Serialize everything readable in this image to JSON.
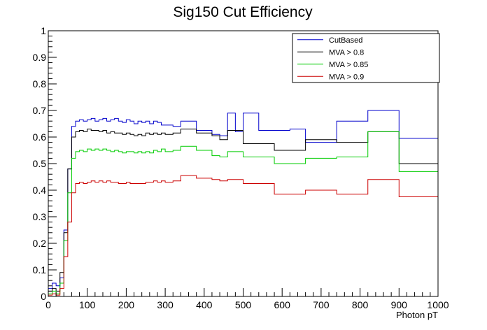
{
  "chart_data": {
    "type": "line",
    "title": "Sig150 Cut Efficiency",
    "xlabel": "Photon pT",
    "ylabel": "",
    "xlim": [
      0,
      1000
    ],
    "ylim": [
      0,
      1
    ],
    "x_tick_labels": [
      "0",
      "100",
      "200",
      "300",
      "400",
      "500",
      "600",
      "700",
      "800",
      "900",
      "1000"
    ],
    "y_tick_labels": [
      "0",
      "0.1",
      "0.2",
      "0.3",
      "0.4",
      "0.5",
      "0.6",
      "0.7",
      "0.8",
      "0.9",
      "1"
    ],
    "grid": false,
    "legend_position": "top-right",
    "bin_edges": [
      0,
      10,
      20,
      30,
      40,
      50,
      60,
      70,
      80,
      90,
      100,
      110,
      120,
      130,
      140,
      150,
      160,
      170,
      180,
      190,
      200,
      210,
      220,
      230,
      240,
      250,
      260,
      270,
      280,
      290,
      300,
      320,
      340,
      360,
      380,
      400,
      420,
      440,
      460,
      480,
      500,
      540,
      580,
      620,
      660,
      700,
      740,
      780,
      820,
      860,
      900,
      1000
    ],
    "series": [
      {
        "name": "CutBased",
        "color": "#0000cc",
        "values": [
          0.03,
          0.05,
          0.04,
          0.07,
          0.25,
          0.48,
          0.64,
          0.66,
          0.665,
          0.66,
          0.665,
          0.67,
          0.66,
          0.665,
          0.67,
          0.66,
          0.665,
          0.67,
          0.66,
          0.655,
          0.665,
          0.66,
          0.65,
          0.66,
          0.655,
          0.66,
          0.65,
          0.66,
          0.655,
          0.645,
          0.645,
          0.64,
          0.66,
          0.66,
          0.625,
          0.625,
          0.61,
          0.605,
          0.69,
          0.62,
          0.69,
          0.625,
          0.625,
          0.63,
          0.58,
          0.58,
          0.66,
          0.66,
          0.7,
          0.7,
          0.595
        ]
      },
      {
        "name": "MVA > 0.8",
        "color": "#000000",
        "values": [
          0.02,
          0.03,
          0.02,
          0.09,
          0.24,
          0.48,
          0.6,
          0.62,
          0.625,
          0.62,
          0.63,
          0.625,
          0.625,
          0.62,
          0.625,
          0.615,
          0.62,
          0.615,
          0.615,
          0.61,
          0.615,
          0.61,
          0.605,
          0.61,
          0.605,
          0.615,
          0.61,
          0.615,
          0.61,
          0.615,
          0.61,
          0.615,
          0.63,
          0.63,
          0.615,
          0.615,
          0.605,
          0.59,
          0.625,
          0.625,
          0.575,
          0.575,
          0.55,
          0.55,
          0.59,
          0.59,
          0.58,
          0.58,
          0.62,
          0.62,
          0.5
        ]
      },
      {
        "name": "MVA > 0.85",
        "color": "#00cc00",
        "values": [
          0.01,
          0.02,
          0.01,
          0.05,
          0.21,
          0.39,
          0.52,
          0.545,
          0.55,
          0.545,
          0.555,
          0.55,
          0.555,
          0.55,
          0.555,
          0.55,
          0.545,
          0.55,
          0.545,
          0.54,
          0.545,
          0.545,
          0.54,
          0.545,
          0.54,
          0.545,
          0.54,
          0.55,
          0.545,
          0.555,
          0.545,
          0.55,
          0.565,
          0.565,
          0.55,
          0.55,
          0.53,
          0.525,
          0.545,
          0.545,
          0.525,
          0.525,
          0.5,
          0.5,
          0.52,
          0.52,
          0.525,
          0.525,
          0.62,
          0.62,
          0.47
        ]
      },
      {
        "name": "MVA > 0.9",
        "color": "#cc0000",
        "values": [
          0.005,
          0.01,
          0.005,
          0.03,
          0.15,
          0.28,
          0.39,
          0.425,
          0.43,
          0.425,
          0.43,
          0.435,
          0.43,
          0.435,
          0.43,
          0.435,
          0.43,
          0.43,
          0.425,
          0.425,
          0.43,
          0.425,
          0.425,
          0.425,
          0.425,
          0.43,
          0.43,
          0.435,
          0.43,
          0.435,
          0.43,
          0.435,
          0.455,
          0.455,
          0.445,
          0.445,
          0.44,
          0.435,
          0.44,
          0.44,
          0.425,
          0.425,
          0.385,
          0.385,
          0.4,
          0.4,
          0.385,
          0.385,
          0.44,
          0.44,
          0.375
        ]
      }
    ]
  }
}
